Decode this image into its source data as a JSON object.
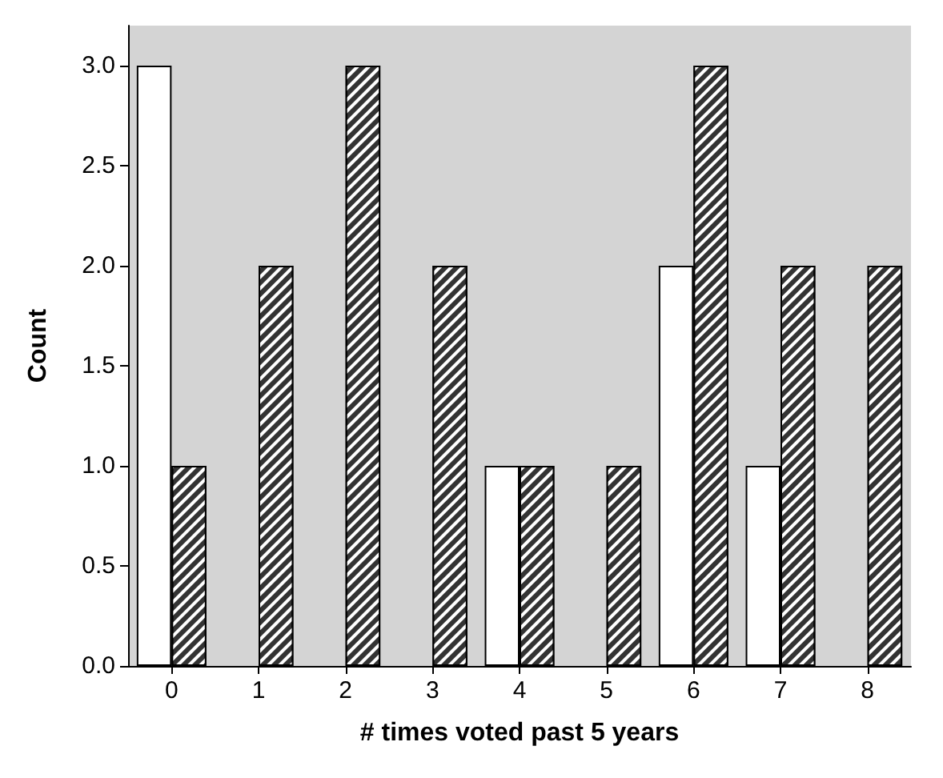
{
  "chart_data": {
    "type": "bar",
    "xlabel": "# times voted past 5 years",
    "ylabel": "Count",
    "categories": [
      "0",
      "1",
      "2",
      "3",
      "4",
      "5",
      "6",
      "7",
      "8"
    ],
    "series": [
      {
        "color": "#ffffff",
        "values": [
          3,
          0,
          0,
          0,
          1,
          0,
          2,
          1,
          0
        ]
      },
      {
        "color": "#333333",
        "values": [
          1,
          2,
          3,
          2,
          1,
          1,
          3,
          2,
          2
        ]
      }
    ],
    "ylim": [
      0,
      3.2
    ],
    "yticks": [
      {
        "value": 0,
        "label": "0.0"
      },
      {
        "value": 0.5,
        "label": "0.5"
      },
      {
        "value": 1,
        "label": "1.0"
      },
      {
        "value": 1.5,
        "label": "1.5"
      },
      {
        "value": 2,
        "label": "2.0"
      },
      {
        "value": 2.5,
        "label": "2.5"
      },
      {
        "value": 3,
        "label": "3.0"
      }
    ],
    "grid": false
  }
}
